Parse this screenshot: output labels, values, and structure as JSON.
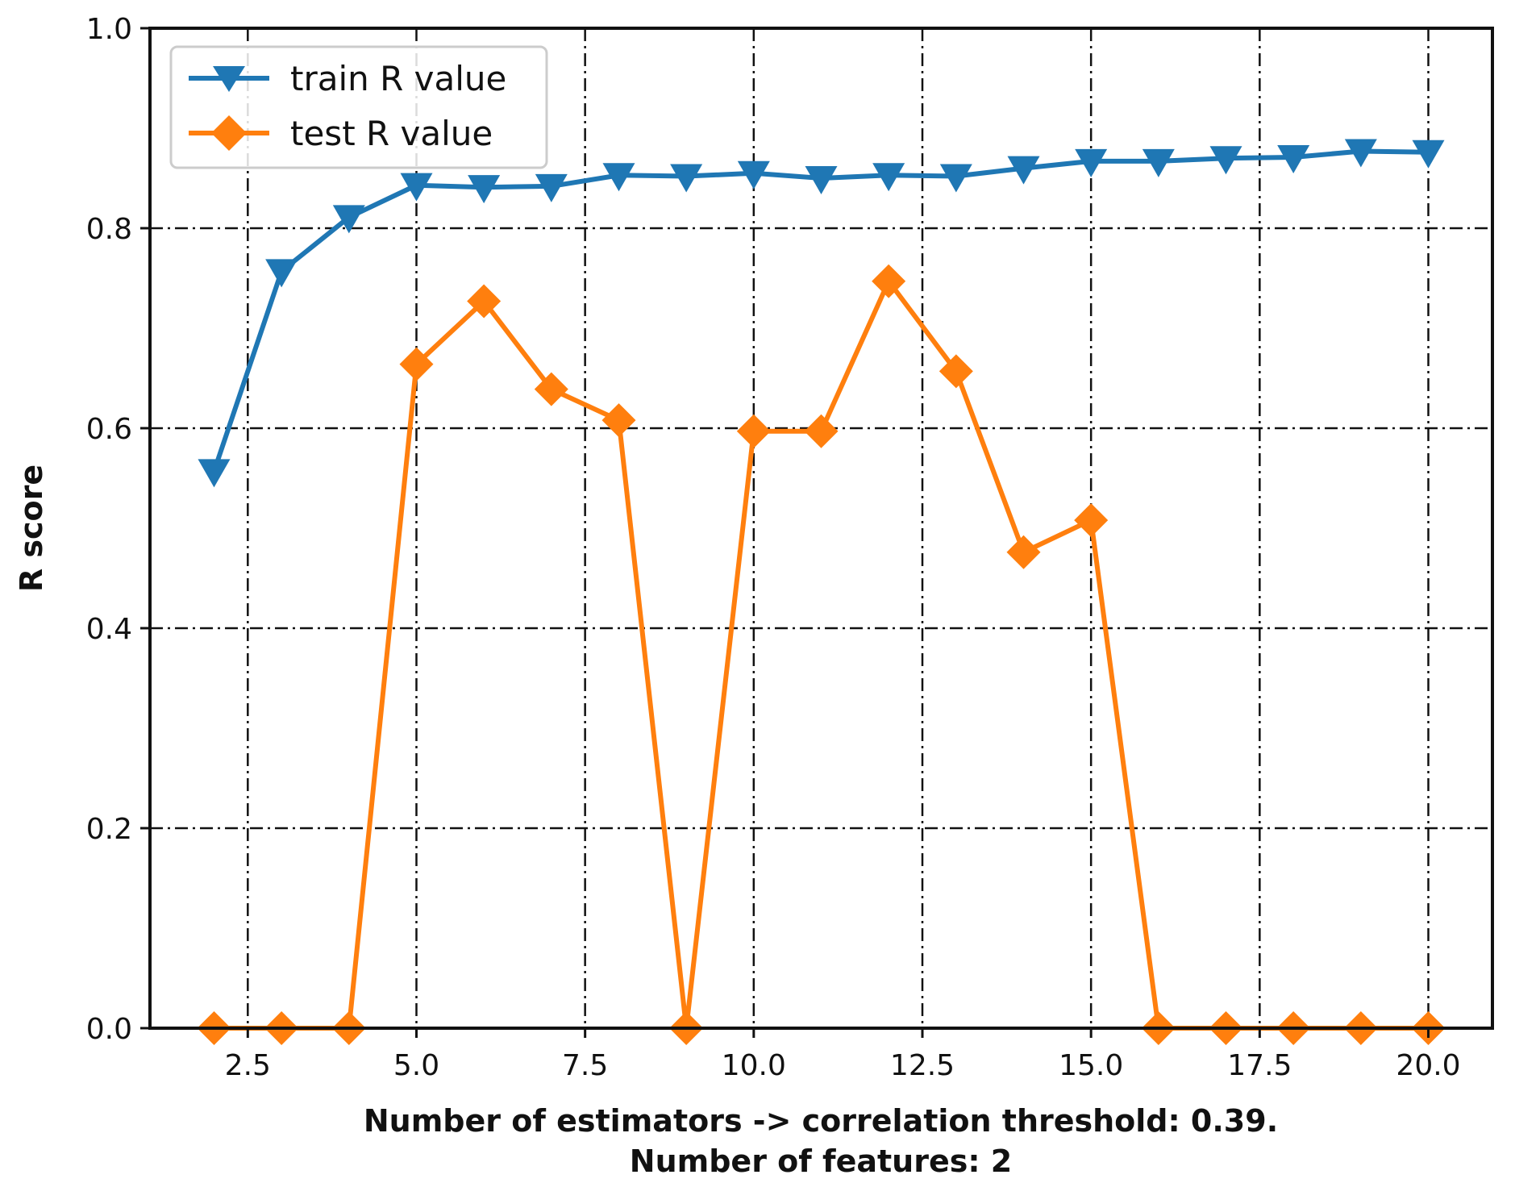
{
  "chart_data": {
    "type": "line",
    "title": "",
    "xlabel": "Number of estimators -> correlation threshold: 0.39.",
    "xlabel_line2": "Number of features:  2",
    "ylabel": "R score",
    "xlim": [
      1.05,
      20.95
    ],
    "ylim": [
      0.0,
      1.0
    ],
    "xticks": [
      2.5,
      5.0,
      7.5,
      10.0,
      12.5,
      15.0,
      17.5,
      20.0
    ],
    "xtick_labels": [
      "2.5",
      "5.0",
      "7.5",
      "10.0",
      "12.5",
      "15.0",
      "17.5",
      "20.0"
    ],
    "yticks": [
      0.0,
      0.2,
      0.4,
      0.6,
      0.8,
      1.0
    ],
    "ytick_labels": [
      "0.0",
      "0.2",
      "0.4",
      "0.6",
      "0.8",
      "1.0"
    ],
    "grid": true,
    "legend_position": "top-left",
    "x": [
      2,
      3,
      4,
      5,
      6,
      7,
      8,
      9,
      10,
      11,
      12,
      13,
      14,
      15,
      16,
      17,
      18,
      19,
      20
    ],
    "series": [
      {
        "name": "train R value",
        "color": "#1f77b4",
        "marker": "triangle-down",
        "values": [
          0.557,
          0.757,
          0.811,
          0.843,
          0.841,
          0.842,
          0.853,
          0.852,
          0.855,
          0.85,
          0.853,
          0.852,
          0.86,
          0.867,
          0.867,
          0.87,
          0.871,
          0.877,
          0.876
        ]
      },
      {
        "name": "test R value",
        "color": "#ff7f0e",
        "marker": "diamond",
        "values": [
          0.0,
          0.0,
          0.0,
          0.664,
          0.727,
          0.639,
          0.608,
          0.0,
          0.597,
          0.597,
          0.747,
          0.657,
          0.476,
          0.508,
          0.0,
          0.0,
          0.0,
          0.0,
          0.0
        ]
      }
    ]
  }
}
